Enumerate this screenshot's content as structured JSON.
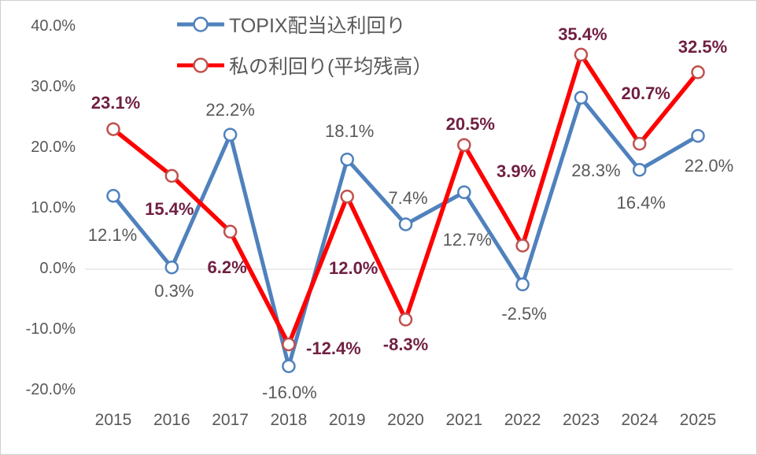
{
  "chart": {
    "background_color": "#FFFFFF",
    "border_color": "#CFCFCF"
  },
  "chart_data": {
    "type": "line",
    "title": "",
    "xlabel": "",
    "ylabel": "",
    "categories": [
      "2015",
      "2016",
      "2017",
      "2018",
      "2019",
      "2020",
      "2021",
      "2022",
      "2023",
      "2024",
      "2025"
    ],
    "series": [
      {
        "name": "TOPIX配当込利回り",
        "color": "#4F81BD",
        "marker_color": "#4F81BD",
        "marker_fill": "#FFFFFF",
        "label_color": "#595959",
        "label_bold": false,
        "values": [
          12.1,
          0.3,
          22.2,
          -16.0,
          18.1,
          7.4,
          12.7,
          -2.5,
          28.3,
          16.4,
          22.0
        ],
        "labels": [
          "12.1%",
          "0.3%",
          "22.2%",
          "-16.0%",
          "18.1%",
          "7.4%",
          "12.7%",
          "-2.5%",
          "28.3%",
          "16.4%",
          "22.0%"
        ]
      },
      {
        "name": "私の利回り(平均残高）",
        "color": "#FF0000",
        "marker_color": "#C0504D",
        "marker_fill": "#FFFFFF",
        "label_color": "#701F42",
        "label_bold": true,
        "values": [
          23.1,
          15.4,
          6.2,
          -12.4,
          12.0,
          -8.3,
          20.5,
          3.9,
          35.4,
          20.7,
          32.5
        ],
        "labels": [
          "23.1%",
          "15.4%",
          "6.2%",
          "-12.4%",
          "12.0%",
          "-8.3%",
          "20.5%",
          "3.9%",
          "35.4%",
          "20.7%",
          "32.5%"
        ]
      }
    ],
    "ylim": [
      -20,
      40
    ],
    "y_ticks": [
      {
        "label": "40.0%",
        "value": 40
      },
      {
        "label": "30.0%",
        "value": 30
      },
      {
        "label": "20.0%",
        "value": 20
      },
      {
        "label": "10.0%",
        "value": 10
      },
      {
        "label": "0.0%",
        "value": 0
      },
      {
        "label": "-10.0%",
        "value": -10
      },
      {
        "label": "-20.0%",
        "value": -20
      }
    ],
    "grid": "zero-line-only",
    "gridline_color": "#D9D9D9",
    "axis_text_color": "#595959",
    "legend_position": "top-center"
  }
}
